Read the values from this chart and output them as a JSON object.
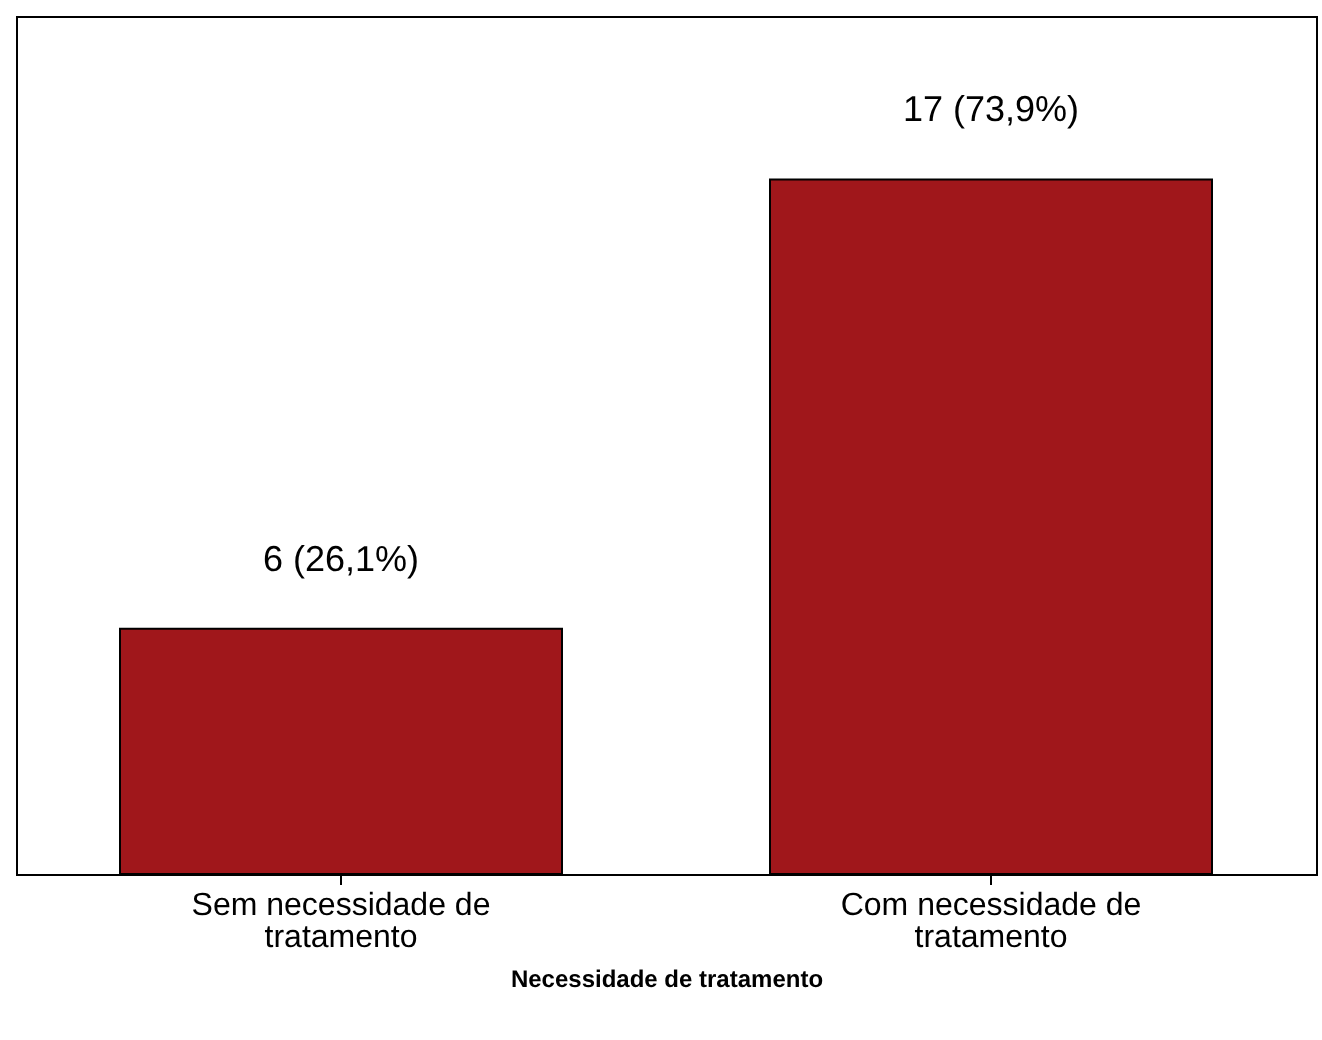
{
  "chart_data": {
    "type": "bar",
    "xlabel": "Necessidade de tratamento",
    "categories": [
      "Sem necessidade de tratamento",
      "Com necessidade de tratamento"
    ],
    "values": [
      6,
      17
    ],
    "value_labels": [
      "6 (26,1%)",
      "17 (73,9%)"
    ],
    "color": "#a0171b",
    "ylim": [
      0,
      21
    ],
    "tick_labels": "x",
    "grid": false
  }
}
